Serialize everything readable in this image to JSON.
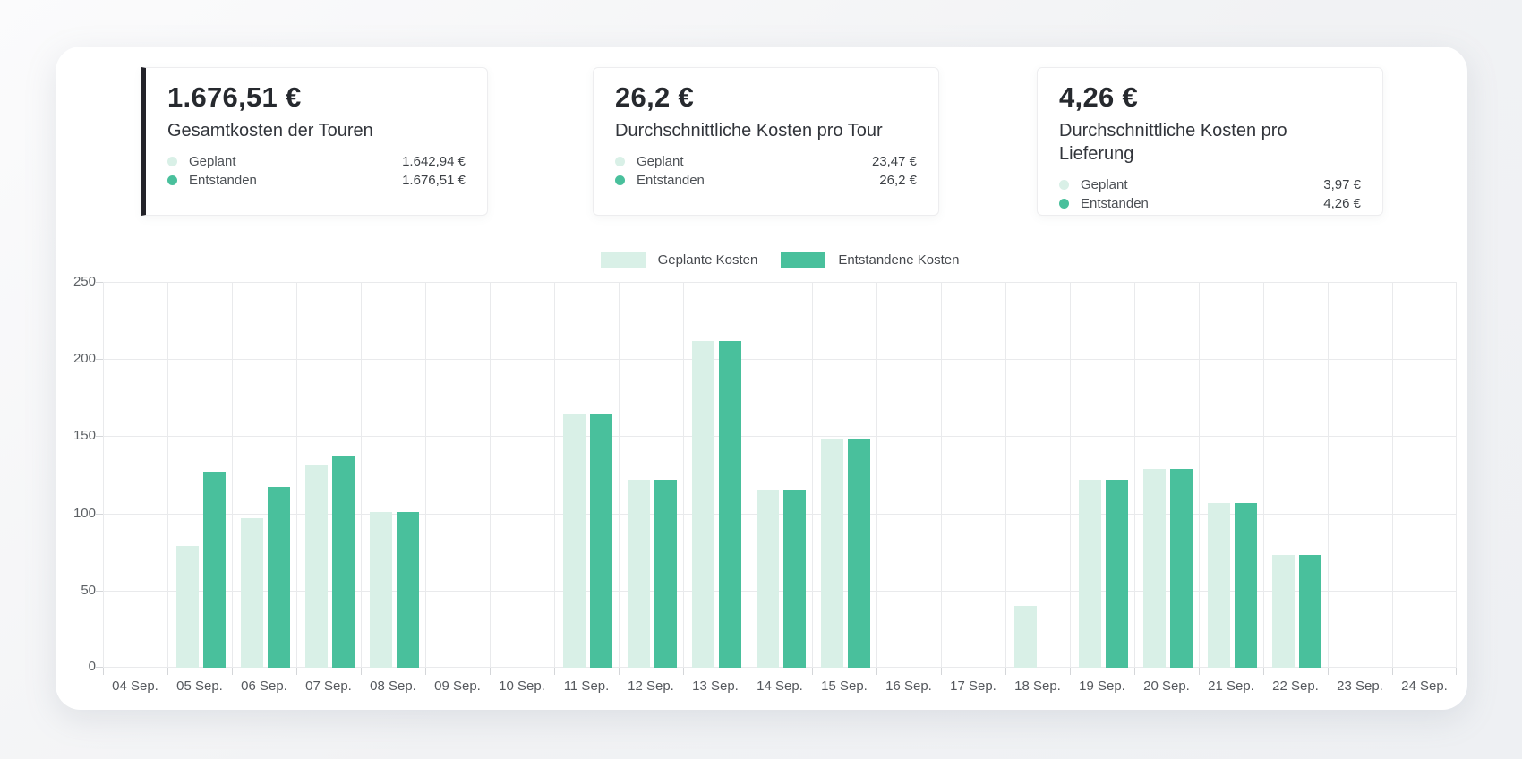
{
  "panel": {
    "cards": [
      {
        "value": "1.676,51 €",
        "title": "Gesamtkosten der Touren",
        "selected": true,
        "rows": [
          {
            "label": "Geplant",
            "value": "1.642,94 €"
          },
          {
            "label": "Entstanden",
            "value": "1.676,51 €"
          }
        ]
      },
      {
        "value": "26,2 €",
        "title": "Durchschnittliche Kosten pro Tour",
        "selected": false,
        "rows": [
          {
            "label": "Geplant",
            "value": "23,47 €"
          },
          {
            "label": "Entstanden",
            "value": "26,2 €"
          }
        ]
      },
      {
        "value": "4,26 €",
        "title": "Durchschnittliche Kosten pro Lieferung",
        "selected": false,
        "rows": [
          {
            "label": "Geplant",
            "value": "3,97 €"
          },
          {
            "label": "Entstanden",
            "value": "4,26 €"
          }
        ]
      }
    ]
  },
  "colors": {
    "planned": "#d9f0e7",
    "actual": "#49c09c",
    "selected_accent": "#232329"
  },
  "chart_data": {
    "type": "bar",
    "title": "",
    "xlabel": "",
    "ylabel": "",
    "categories": [
      "04 Sep.",
      "05 Sep.",
      "06 Sep.",
      "07 Sep.",
      "08 Sep.",
      "09 Sep.",
      "10 Sep.",
      "11 Sep.",
      "12 Sep.",
      "13 Sep.",
      "14 Sep.",
      "15 Sep.",
      "16 Sep.",
      "17 Sep.",
      "18 Sep.",
      "19 Sep.",
      "20 Sep.",
      "21 Sep.",
      "22 Sep.",
      "23 Sep.",
      "24 Sep."
    ],
    "series": [
      {
        "name": "Geplante Kosten",
        "color_key": "planned",
        "values": [
          0,
          79,
          97,
          131,
          101,
          0,
          0,
          165,
          122,
          212,
          115,
          148,
          0,
          0,
          40,
          122,
          129,
          107,
          73,
          0,
          0
        ]
      },
      {
        "name": "Entstandene Kosten",
        "color_key": "actual",
        "values": [
          0,
          127,
          117,
          137,
          101,
          0,
          0,
          165,
          122,
          212,
          115,
          148,
          0,
          0,
          0,
          122,
          129,
          107,
          73,
          0,
          0
        ]
      }
    ],
    "ylim": [
      0,
      250
    ],
    "yticks": [
      0,
      50,
      100,
      150,
      200,
      250
    ],
    "grid": true,
    "legend_position": "top-center"
  }
}
